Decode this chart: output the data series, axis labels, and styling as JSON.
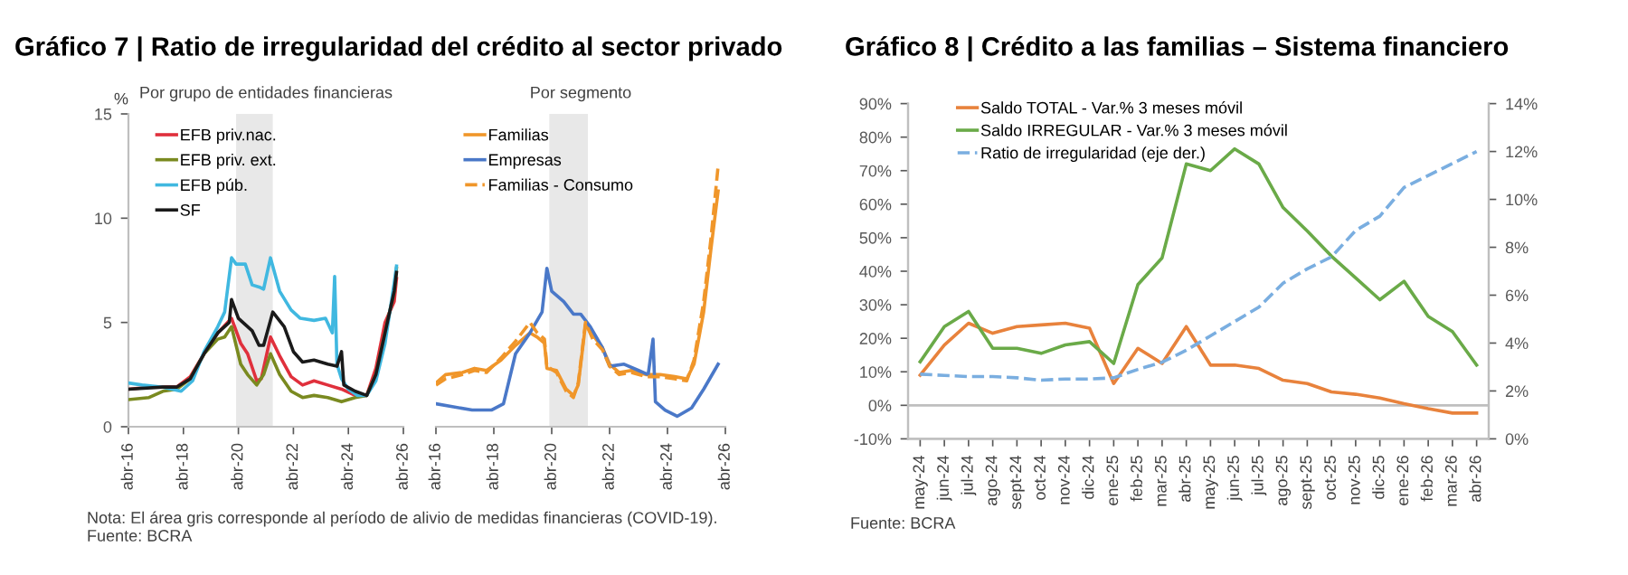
{
  "chart_data": [
    {
      "type": "line",
      "title": "Gráfico 7 | Ratio de irregularidad del crédito al sector privado",
      "subtitle": "Por grupo de entidades financieras",
      "ylabel": "%",
      "xlim": [
        "2016-04",
        "2026-04"
      ],
      "xticks": [
        {
          "value": "2016-04",
          "label": "abr-16"
        },
        {
          "value": "2018-04",
          "label": "abr-18"
        },
        {
          "value": "2020-04",
          "label": "abr-20"
        },
        {
          "value": "2022-04",
          "label": "abr-22"
        },
        {
          "value": "2024-04",
          "label": "abr-24"
        },
        {
          "value": "2026-04",
          "label": "abr-26"
        }
      ],
      "ylim": [
        0,
        15
      ],
      "yticks": [
        0,
        5,
        10,
        15
      ],
      "grid": false,
      "legend": "top left",
      "line_style": "solid",
      "bands": [
        {
          "axis": "x",
          "from": "2020-03",
          "to": "2021-07",
          "color": "#e8e8e8"
        }
      ],
      "annotations": [
        "Nota: El área gris corresponde al período de alivio de medidas financieras (COVID-19).",
        "Fuente: BCRA"
      ],
      "series": [
        {
          "name": "EFB priv.nac.",
          "color": "#e0303c",
          "x": [
            "2016-04",
            "2017-01",
            "2018-01",
            "2018-07",
            "2019-01",
            "2019-07",
            "2020-01",
            "2020-05",
            "2020-08",
            "2020-12",
            "2021-02",
            "2021-06",
            "2021-10",
            "2022-03",
            "2022-08",
            "2023-01",
            "2023-07",
            "2024-01",
            "2024-07",
            "2024-12",
            "2025-04",
            "2025-08",
            "2025-12",
            "2026-01"
          ],
          "values": [
            1.8,
            1.9,
            1.9,
            2.4,
            3.5,
            4.5,
            5.2,
            4.0,
            3.5,
            2.2,
            2.3,
            4.3,
            3.4,
            2.4,
            2.0,
            2.2,
            2.0,
            1.8,
            1.5,
            1.5,
            2.8,
            5.0,
            6.0,
            7.1
          ]
        },
        {
          "name": "EFB priv. ext.",
          "color": "#7a8a20",
          "x": [
            "2016-04",
            "2017-01",
            "2017-07",
            "2018-01",
            "2018-07",
            "2019-01",
            "2019-07",
            "2019-10",
            "2020-01",
            "2020-05",
            "2020-08",
            "2020-12",
            "2021-03",
            "2021-06",
            "2021-10",
            "2022-03",
            "2022-08",
            "2023-01",
            "2023-07",
            "2024-01",
            "2024-07",
            "2024-12",
            "2025-04",
            "2025-08",
            "2025-12",
            "2026-01"
          ],
          "values": [
            1.3,
            1.4,
            1.7,
            1.8,
            2.3,
            3.5,
            4.2,
            4.3,
            4.8,
            3.0,
            2.5,
            2.0,
            2.5,
            3.5,
            2.5,
            1.7,
            1.4,
            1.5,
            1.4,
            1.2,
            1.4,
            1.5,
            2.5,
            4.5,
            6.5,
            7.6
          ]
        },
        {
          "name": "EFB púb.",
          "color": "#40b8e0",
          "x": [
            "2016-04",
            "2016-10",
            "2017-07",
            "2018-03",
            "2018-08",
            "2019-01",
            "2019-07",
            "2019-10",
            "2020-01",
            "2020-03",
            "2020-07",
            "2020-10",
            "2021-01",
            "2021-03",
            "2021-06",
            "2021-10",
            "2022-03",
            "2022-07",
            "2023-01",
            "2023-06",
            "2023-09",
            "2023-10",
            "2023-11",
            "2024-01",
            "2024-04",
            "2024-08",
            "2024-12",
            "2025-04",
            "2025-08",
            "2025-12",
            "2026-01"
          ],
          "values": [
            2.1,
            2.0,
            1.9,
            1.7,
            2.2,
            3.6,
            4.8,
            5.5,
            8.1,
            7.8,
            7.8,
            6.8,
            6.7,
            6.6,
            8.1,
            6.5,
            5.6,
            5.2,
            5.1,
            5.2,
            4.5,
            7.2,
            3.0,
            2.3,
            1.8,
            1.5,
            1.5,
            2.2,
            4.0,
            6.9,
            7.7
          ]
        },
        {
          "name": "SF",
          "color": "#1a1a1a",
          "x": [
            "2016-04",
            "2017-07",
            "2018-01",
            "2018-07",
            "2019-01",
            "2019-07",
            "2019-12",
            "2020-01",
            "2020-04",
            "2020-10",
            "2021-01",
            "2021-03",
            "2021-07",
            "2021-12",
            "2022-04",
            "2022-08",
            "2023-01",
            "2023-07",
            "2023-11",
            "2024-01",
            "2024-02",
            "2024-07",
            "2024-12",
            "2025-04",
            "2025-08",
            "2025-12",
            "2026-01"
          ],
          "values": [
            1.8,
            1.9,
            1.9,
            2.3,
            3.5,
            4.5,
            5.0,
            6.1,
            5.2,
            4.6,
            3.9,
            3.9,
            5.5,
            4.8,
            3.6,
            3.1,
            3.2,
            3.0,
            2.9,
            3.6,
            2.0,
            1.7,
            1.5,
            2.5,
            4.5,
            6.5,
            7.4
          ]
        }
      ]
    },
    {
      "type": "line",
      "subtitle": "Por segmento",
      "tick_labels": "x",
      "xlim": [
        "2016-04",
        "2026-04"
      ],
      "xticks": [
        {
          "value": "2016-04",
          "label": "abr-16"
        },
        {
          "value": "2018-04",
          "label": "abr-18"
        },
        {
          "value": "2020-04",
          "label": "abr-20"
        },
        {
          "value": "2022-04",
          "label": "abr-22"
        },
        {
          "value": "2024-04",
          "label": "abr-24"
        },
        {
          "value": "2026-04",
          "label": "abr-26"
        }
      ],
      "ylim": [
        0,
        15
      ],
      "grid": false,
      "legend": "top left",
      "bands": [
        {
          "axis": "x",
          "from": "2020-03",
          "to": "2021-07",
          "color": "#e8e8e8"
        }
      ],
      "series": [
        {
          "name": "Familias",
          "color": "#f0962a",
          "line_style": "solid",
          "x": [
            "2016-04",
            "2016-08",
            "2017-03",
            "2017-08",
            "2018-01",
            "2018-07",
            "2019-01",
            "2019-07",
            "2019-10",
            "2020-01",
            "2020-02",
            "2020-06",
            "2020-10",
            "2021-01",
            "2021-03",
            "2021-06",
            "2021-09",
            "2022-01",
            "2022-04",
            "2022-08",
            "2023-01",
            "2023-07",
            "2024-01",
            "2024-07",
            "2024-12",
            "2025-03",
            "2025-07",
            "2025-10",
            "2026-01"
          ],
          "values": [
            2.1,
            2.5,
            2.6,
            2.8,
            2.7,
            3.2,
            3.9,
            4.5,
            4.3,
            4.0,
            2.8,
            2.7,
            1.8,
            1.5,
            2.0,
            4.9,
            4.4,
            3.8,
            3.0,
            2.6,
            2.7,
            2.5,
            2.5,
            2.4,
            2.3,
            3.0,
            5.5,
            8.5,
            11.3
          ]
        },
        {
          "name": "Empresas",
          "color": "#4a78c8",
          "line_style": "solid",
          "x": [
            "2016-04",
            "2017-07",
            "2018-03",
            "2018-08",
            "2019-01",
            "2019-07",
            "2019-12",
            "2020-02",
            "2020-04",
            "2020-09",
            "2021-01",
            "2021-04",
            "2021-08",
            "2022-01",
            "2022-04",
            "2022-10",
            "2023-04",
            "2023-08",
            "2023-10",
            "2023-11",
            "2024-03",
            "2024-08",
            "2025-02",
            "2025-07",
            "2026-01"
          ],
          "values": [
            1.1,
            0.8,
            0.8,
            1.1,
            3.5,
            4.5,
            5.5,
            7.6,
            6.5,
            6.0,
            5.4,
            5.4,
            4.8,
            3.8,
            2.9,
            3.0,
            2.7,
            2.5,
            4.2,
            1.2,
            0.8,
            0.5,
            0.9,
            1.8,
            3.0
          ]
        },
        {
          "name": "Familias - Consumo",
          "color": "#f0962a",
          "line_style": "dashed",
          "x": [
            "2016-04",
            "2016-08",
            "2017-03",
            "2017-08",
            "2018-01",
            "2018-07",
            "2019-01",
            "2019-07",
            "2019-10",
            "2020-01",
            "2020-02",
            "2020-06",
            "2020-10",
            "2021-01",
            "2021-03",
            "2021-06",
            "2021-09",
            "2022-01",
            "2022-04",
            "2022-08",
            "2023-01",
            "2023-07",
            "2024-01",
            "2024-07",
            "2024-12",
            "2025-03",
            "2025-07",
            "2025-10",
            "2026-01"
          ],
          "values": [
            2.0,
            2.3,
            2.5,
            2.7,
            2.6,
            3.3,
            4.1,
            5.0,
            4.5,
            4.2,
            2.9,
            2.6,
            1.7,
            1.4,
            2.1,
            5.0,
            4.2,
            3.7,
            2.9,
            2.5,
            2.6,
            2.4,
            2.4,
            2.3,
            2.2,
            3.2,
            6.0,
            9.0,
            12.5
          ]
        }
      ]
    },
    {
      "type": "line",
      "title": "Gráfico 8 | Crédito a las familias – Sistema financiero",
      "categories": [
        "may-24",
        "jun-24",
        "jul-24",
        "ago-24",
        "sept-24",
        "oct-24",
        "nov-24",
        "dic-24",
        "ene-25",
        "feb-25",
        "mar-25",
        "abr-25",
        "may-25",
        "jun-25",
        "jul-25",
        "ago-25",
        "sept-25",
        "oct-25",
        "nov-25",
        "dic-25",
        "ene-26",
        "feb-26",
        "mar-26",
        "abr-26"
      ],
      "ylim": [
        -10,
        90
      ],
      "yticks": [
        {
          "value": -10,
          "label": "-10%"
        },
        {
          "value": 0,
          "label": "0%"
        },
        {
          "value": 10,
          "label": "10%"
        },
        {
          "value": 20,
          "label": "20%"
        },
        {
          "value": 30,
          "label": "30%"
        },
        {
          "value": 40,
          "label": "40%"
        },
        {
          "value": 50,
          "label": "50%"
        },
        {
          "value": 60,
          "label": "60%"
        },
        {
          "value": 70,
          "label": "70%"
        },
        {
          "value": 80,
          "label": "80%"
        },
        {
          "value": 90,
          "label": "90%"
        }
      ],
      "y2lim": [
        0,
        14
      ],
      "y2ticks": [
        {
          "value": 0,
          "label": "0%"
        },
        {
          "value": 2,
          "label": "2%"
        },
        {
          "value": 4,
          "label": "4%"
        },
        {
          "value": 6,
          "label": "6%"
        },
        {
          "value": 8,
          "label": "8%"
        },
        {
          "value": 10,
          "label": "10%"
        },
        {
          "value": 12,
          "label": "12%"
        },
        {
          "value": 14,
          "label": "14%"
        }
      ],
      "grid": false,
      "legend": "top left",
      "ref_lines": [
        {
          "axis": "y",
          "value": 0,
          "color": "#bfbfbf"
        }
      ],
      "annotations": [
        "Fuente: BCRA"
      ],
      "series": [
        {
          "name": "Saldo TOTAL - Var.% 3 meses móvil",
          "color": "#e8823c",
          "line_style": "solid",
          "values": [
            9,
            18,
            24.5,
            21.5,
            23.5,
            24,
            24.5,
            23,
            6.5,
            17,
            12.5,
            23.5,
            12,
            12,
            11,
            7.5,
            6.5,
            4,
            3.3,
            2.2,
            0.5,
            -1,
            -2.3,
            -2.3
          ]
        },
        {
          "name": "Saldo IRREGULAR - Var.% 3 meses móvil",
          "color": "#6aaa48",
          "line_style": "solid",
          "values": [
            13,
            23.5,
            28,
            17,
            17,
            15.5,
            18,
            19,
            12.5,
            36,
            44,
            72,
            70,
            76.5,
            72,
            59,
            52,
            44.5,
            38,
            31.5,
            37,
            26.5,
            22,
            12
          ]
        },
        {
          "name": "Ratio de irregularidad (eje der.)",
          "color": "#7aaee0",
          "line_style": "dashed",
          "axis": "y2",
          "values": [
            2.7,
            2.65,
            2.6,
            2.6,
            2.55,
            2.45,
            2.5,
            2.5,
            2.55,
            2.9,
            3.2,
            3.7,
            4.3,
            4.9,
            5.5,
            6.5,
            7.1,
            7.6,
            8.7,
            9.3,
            10.5,
            11.0,
            11.5,
            12.0
          ]
        }
      ]
    }
  ]
}
